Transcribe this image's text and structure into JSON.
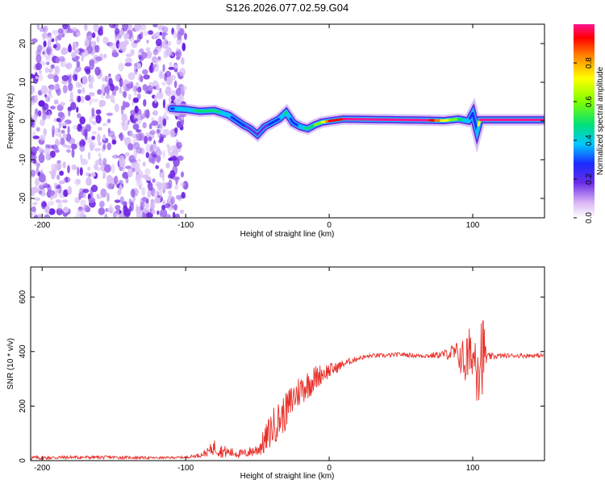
{
  "figure": {
    "title": "S126.2026.077.02.59.G04"
  },
  "chart_data": [
    {
      "type": "heatmap",
      "name": "spectrogram",
      "xlabel": "Height of straight line (km)",
      "ylabel": "Frequency (Hz)",
      "xlim": [
        -208,
        150
      ],
      "ylim": [
        -25,
        25
      ],
      "xticks": [
        -200,
        -100,
        0,
        100
      ],
      "yticks": [
        -20,
        -10,
        0,
        10,
        20
      ],
      "colorbar": {
        "label": "Normalized spectral amplitude",
        "range": [
          0,
          1
        ],
        "ticks": [
          0.0,
          0.2,
          0.4,
          0.6,
          0.8
        ]
      },
      "noise_region": {
        "x": [
          -208,
          -100
        ],
        "y": [
          -25,
          25
        ]
      },
      "signal_track": {
        "x": [
          -110,
          -100,
          -90,
          -80,
          -70,
          -60,
          -55,
          -50,
          -45,
          -40,
          -35,
          -30,
          -25,
          -20,
          -15,
          -10,
          -5,
          0,
          10,
          30,
          50,
          70,
          80,
          90,
          97,
          100,
          103,
          105,
          150
        ],
        "y": [
          3.2,
          3.0,
          2.5,
          2.7,
          1.5,
          -1.0,
          -2.0,
          -3.5,
          -1.5,
          -0.5,
          0.5,
          2.2,
          -0.5,
          -1.5,
          -2.0,
          -1.0,
          -0.3,
          0.0,
          0.5,
          0.4,
          0.3,
          0.2,
          0.1,
          0.5,
          0.0,
          2.0,
          -2.5,
          0.3,
          0.3
        ],
        "amplitude": [
          0.35,
          0.45,
          0.5,
          0.55,
          0.4,
          0.3,
          0.25,
          0.2,
          0.25,
          0.3,
          0.35,
          0.5,
          0.3,
          0.4,
          0.55,
          0.6,
          0.7,
          0.95,
          1.0,
          1.0,
          1.0,
          1.0,
          0.8,
          0.6,
          0.4,
          0.3,
          0.3,
          1.0,
          1.0
        ]
      }
    },
    {
      "type": "line",
      "name": "snr",
      "xlabel": "Height of straight line (km)",
      "ylabel": "SNR (10 * v/v)",
      "xlim": [
        -208,
        150
      ],
      "ylim": [
        0,
        710
      ],
      "xticks": [
        -200,
        -100,
        0,
        100
      ],
      "yticks": [
        0,
        200,
        400,
        600
      ],
      "series": [
        {
          "name": "SNR",
          "color": "#e8302a",
          "x": [
            -208,
            -180,
            -150,
            -120,
            -100,
            -90,
            -85,
            -80,
            -75,
            -70,
            -60,
            -50,
            -45,
            -40,
            -35,
            -30,
            -25,
            -20,
            -15,
            -10,
            -5,
            0,
            5,
            10,
            20,
            30,
            40,
            50,
            60,
            70,
            80,
            85,
            90,
            93,
            95,
            97,
            100,
            103,
            105,
            107,
            110,
            120,
            130,
            140,
            150
          ],
          "y": [
            10,
            12,
            12,
            10,
            12,
            20,
            30,
            50,
            35,
            30,
            25,
            40,
            70,
            120,
            150,
            180,
            230,
            260,
            280,
            300,
            320,
            330,
            340,
            355,
            375,
            385,
            385,
            390,
            385,
            385,
            390,
            395,
            390,
            370,
            360,
            380,
            380,
            390,
            400,
            400,
            380,
            385,
            385,
            385,
            385
          ],
          "noise_amplitude": [
            8,
            6,
            6,
            4,
            4,
            8,
            15,
            30,
            25,
            20,
            15,
            25,
            50,
            70,
            70,
            70,
            65,
            60,
            55,
            50,
            35,
            30,
            20,
            15,
            8,
            8,
            8,
            8,
            8,
            10,
            15,
            30,
            50,
            80,
            100,
            120,
            60,
            180,
            200,
            150,
            15,
            8,
            8,
            8,
            8
          ]
        }
      ]
    }
  ],
  "colors": {
    "axis": "#000000",
    "snr_line": "#e8302a",
    "noise": "#7a2ee0"
  }
}
